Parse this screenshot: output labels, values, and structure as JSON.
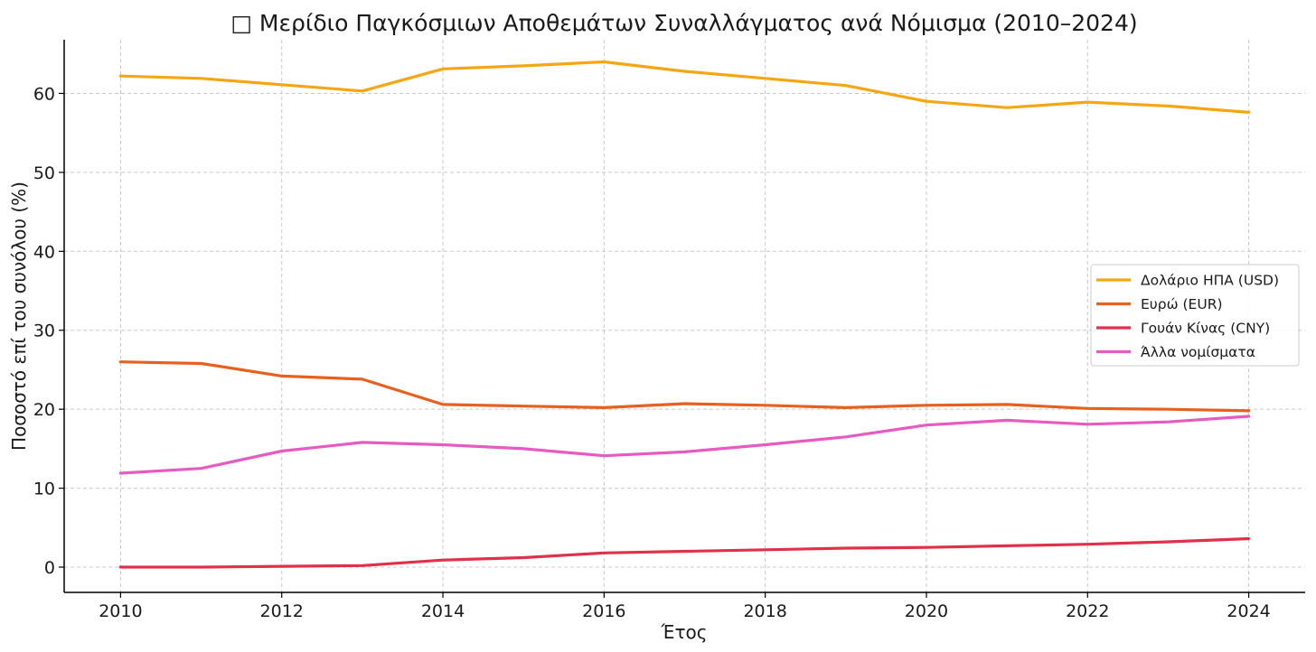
{
  "chart_data": {
    "type": "line",
    "title": "□ Μερίδιο Παγκόσμιων Αποθεμάτων Συναλλάγματος ανά Νόμισμα (2010–2024)",
    "xlabel": "Έτος",
    "ylabel": "Ποσοστό επί του συνόλου (%)",
    "x": [
      2010,
      2011,
      2012,
      2013,
      2014,
      2015,
      2016,
      2017,
      2018,
      2019,
      2020,
      2021,
      2022,
      2023,
      2024
    ],
    "xlim": [
      2009.3,
      2024.7
    ],
    "ylim": [
      -3.2,
      66.8
    ],
    "xticks": [
      2010,
      2012,
      2014,
      2016,
      2018,
      2020,
      2022,
      2024
    ],
    "yticks": [
      0,
      10,
      20,
      30,
      40,
      50,
      60
    ],
    "grid": true,
    "legend_position": "center-right",
    "series": [
      {
        "name": "Δολάριο ΗΠΑ (USD)",
        "color": "#f5a612",
        "values": [
          62.2,
          61.9,
          61.1,
          60.3,
          63.1,
          63.5,
          64.0,
          62.8,
          61.9,
          61.0,
          59.0,
          58.2,
          58.9,
          58.4,
          57.6
        ]
      },
      {
        "name": "Ευρώ (EUR)",
        "color": "#e8601e",
        "values": [
          26.0,
          25.8,
          24.2,
          23.8,
          20.6,
          20.4,
          20.2,
          20.7,
          20.5,
          20.2,
          20.5,
          20.6,
          20.1,
          20.0,
          19.8
        ]
      },
      {
        "name": "Γουάν Κίνας (CNY)",
        "color": "#e0304a",
        "values": [
          0.0,
          0.0,
          0.1,
          0.2,
          0.9,
          1.2,
          1.8,
          2.0,
          2.2,
          2.4,
          2.5,
          2.7,
          2.9,
          3.2,
          3.6
        ]
      },
      {
        "name": "Άλλα νομίσματα",
        "color": "#e65ac2",
        "values": [
          11.9,
          12.5,
          14.7,
          15.8,
          15.5,
          15.0,
          14.1,
          14.6,
          15.5,
          16.5,
          18.0,
          18.6,
          18.1,
          18.4,
          19.1
        ]
      }
    ]
  }
}
